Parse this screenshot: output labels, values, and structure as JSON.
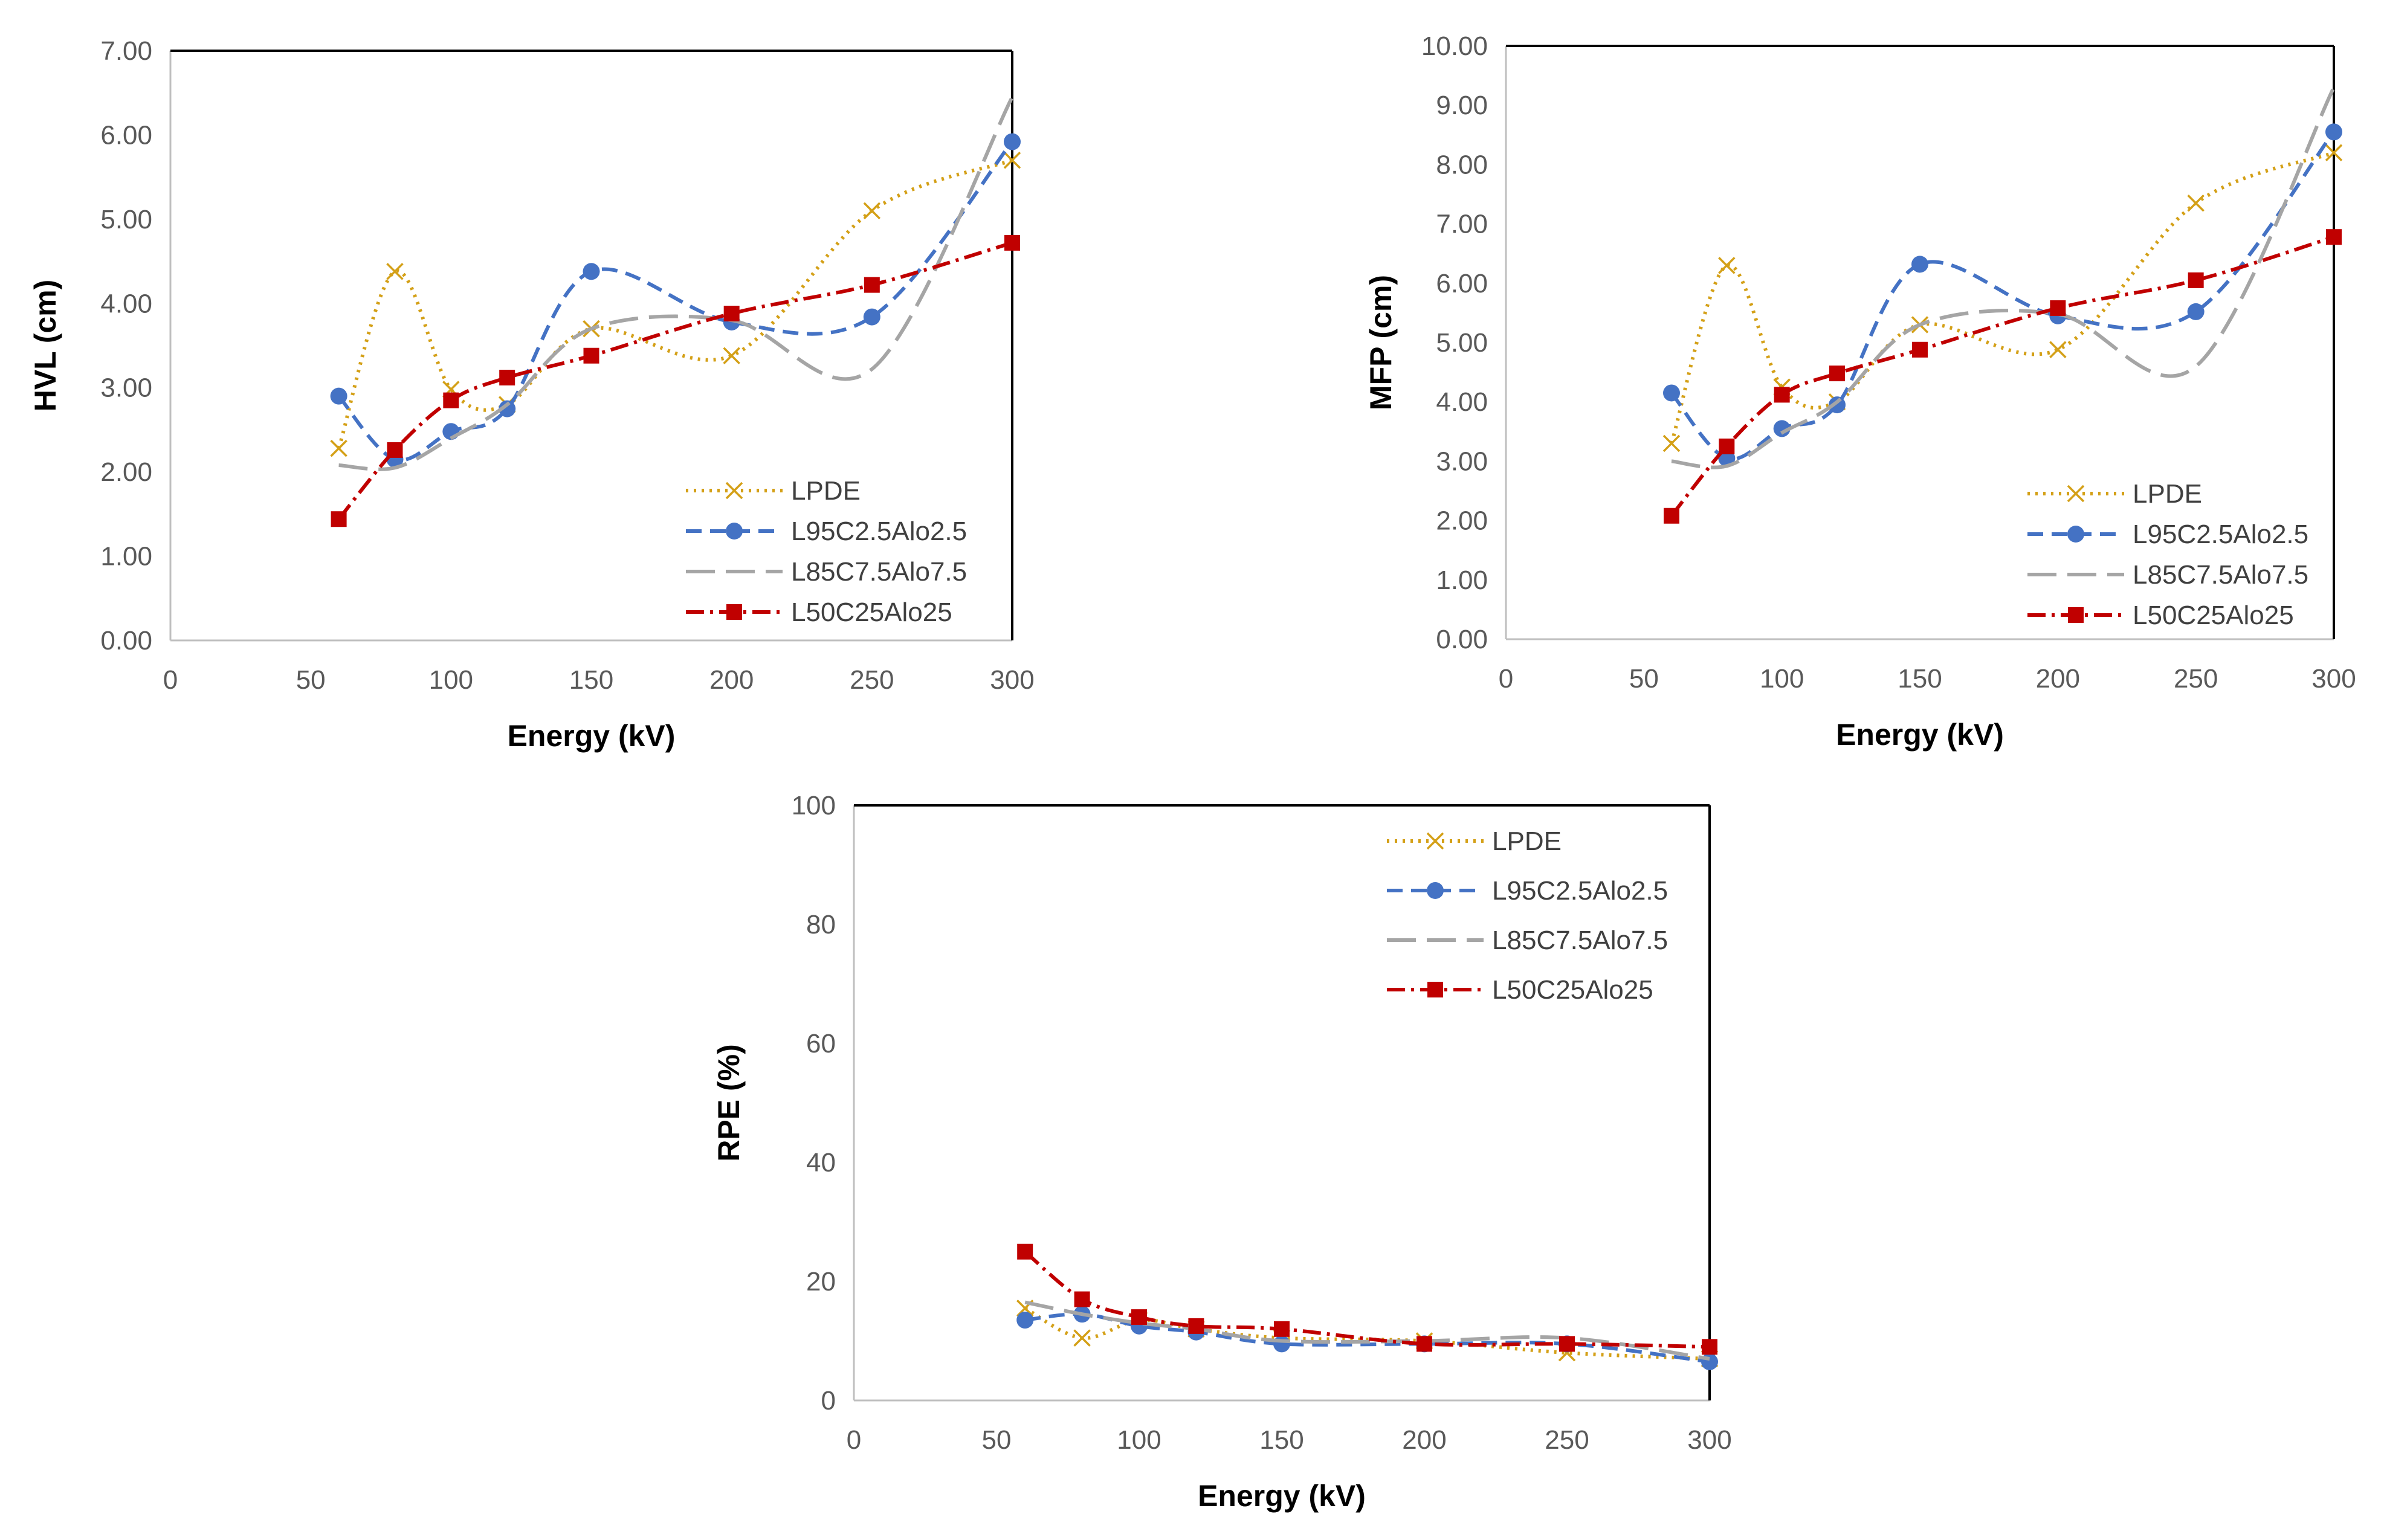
{
  "colors": {
    "LPDE": "#d4a017",
    "L95C2.5Alo2.5": "#4472c4",
    "L85C7.5Alo7.5": "#a5a5a5",
    "L50C25Alo25": "#c00000",
    "axis": "#000000",
    "tick_text": "#595959"
  },
  "chart_data": [
    {
      "type": "line",
      "id": "hvl",
      "title": "",
      "xlabel": "Energy (kV)",
      "ylabel": "HVL (cm)",
      "xlim": [
        0,
        300
      ],
      "ylim": [
        0,
        7
      ],
      "x_ticks": [
        "0",
        "50",
        "100",
        "150",
        "200",
        "250",
        "300"
      ],
      "y_ticks": [
        "0.00",
        "1.00",
        "2.00",
        "3.00",
        "4.00",
        "5.00",
        "6.00",
        "7.00"
      ],
      "legend_position": "bottom-right",
      "x": [
        60,
        80,
        100,
        120,
        150,
        200,
        250,
        300
      ],
      "series": [
        {
          "name": "LPDE",
          "values": [
            2.28,
            4.38,
            2.98,
            2.8,
            3.7,
            3.38,
            5.1,
            5.7
          ]
        },
        {
          "name": "L95C2.5Alo2.5",
          "values": [
            2.9,
            2.15,
            2.48,
            2.75,
            4.38,
            3.78,
            3.84,
            5.92
          ]
        },
        {
          "name": "L85C7.5Alo7.5",
          "values": [
            2.08,
            2.05,
            2.4,
            2.8,
            3.7,
            3.8,
            3.22,
            6.45
          ]
        },
        {
          "name": "L50C25Alo25",
          "values": [
            1.44,
            2.26,
            2.85,
            3.12,
            3.38,
            3.88,
            4.22,
            4.72
          ]
        }
      ]
    },
    {
      "type": "line",
      "id": "mfp",
      "title": "",
      "xlabel": "Energy (kV)",
      "ylabel": "MFP (cm)",
      "xlim": [
        0,
        300
      ],
      "ylim": [
        0,
        10
      ],
      "x_ticks": [
        "0",
        "50",
        "100",
        "150",
        "200",
        "250",
        "300"
      ],
      "y_ticks": [
        "0.00",
        "1.00",
        "2.00",
        "3.00",
        "4.00",
        "5.00",
        "6.00",
        "7.00",
        "8.00",
        "9.00",
        "10.00"
      ],
      "legend_position": "bottom-right",
      "x": [
        60,
        80,
        100,
        120,
        150,
        200,
        250,
        300
      ],
      "series": [
        {
          "name": "LPDE",
          "values": [
            3.3,
            6.3,
            4.25,
            4.0,
            5.3,
            4.88,
            7.35,
            8.2
          ]
        },
        {
          "name": "L95C2.5Alo2.5",
          "values": [
            4.15,
            3.05,
            3.55,
            3.95,
            6.32,
            5.45,
            5.52,
            8.55
          ]
        },
        {
          "name": "L85C7.5Alo7.5",
          "values": [
            3.0,
            2.92,
            3.48,
            4.0,
            5.3,
            5.48,
            4.6,
            9.3
          ]
        },
        {
          "name": "L50C25Alo25",
          "values": [
            2.08,
            3.25,
            4.12,
            4.48,
            4.88,
            5.58,
            6.05,
            6.78
          ]
        }
      ]
    },
    {
      "type": "line",
      "id": "rpe",
      "title": "",
      "xlabel": "Energy (kV)",
      "ylabel": "RPE (%)",
      "xlim": [
        0,
        300
      ],
      "ylim": [
        0,
        100
      ],
      "x_ticks": [
        "0",
        "50",
        "100",
        "150",
        "200",
        "250",
        "300"
      ],
      "y_ticks": [
        "0",
        "20",
        "40",
        "60",
        "80",
        "100"
      ],
      "legend_position": "top-right",
      "x": [
        60,
        80,
        100,
        120,
        150,
        200,
        250,
        300
      ],
      "series": [
        {
          "name": "LPDE",
          "values": [
            15.5,
            10.5,
            13.5,
            12.0,
            10.5,
            10.0,
            8.0,
            7.0
          ]
        },
        {
          "name": "L95C2.5Alo2.5",
          "values": [
            13.5,
            14.5,
            12.5,
            11.5,
            9.5,
            9.5,
            9.5,
            6.5
          ]
        },
        {
          "name": "L85C7.5Alo7.5",
          "values": [
            16.5,
            14.5,
            13.0,
            12.0,
            10.0,
            10.0,
            10.5,
            7.0
          ]
        },
        {
          "name": "L50C25Alo25",
          "values": [
            25.0,
            17.0,
            14.0,
            12.5,
            12.0,
            9.5,
            9.5,
            9.0
          ]
        }
      ]
    }
  ]
}
